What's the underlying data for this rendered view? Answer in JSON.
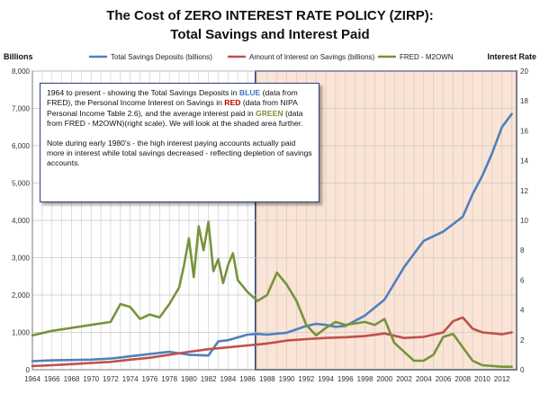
{
  "chart_data": {
    "type": "line",
    "title": "The Cost of ZERO INTEREST RATE POLICY (ZIRP):",
    "subtitle": "Total Savings and Interest Paid",
    "left_axis_title": "Billions",
    "right_axis_title": "Interest Rate",
    "left_ylim": [
      0,
      8000
    ],
    "left_ticks": [
      "0",
      "1,000",
      "2,000",
      "3,000",
      "4,000",
      "5,000",
      "6,000",
      "7,000",
      "8,000"
    ],
    "right_ylim": [
      0,
      20
    ],
    "right_ticks": [
      "0",
      "2",
      "4",
      "6",
      "8",
      "10",
      "12",
      "14",
      "16",
      "18",
      "20"
    ],
    "xlim": [
      1964,
      2013.5
    ],
    "x_tick_labels": [
      "1964",
      "1966",
      "1968",
      "1970",
      "1972",
      "1974",
      "1976",
      "1978",
      "1980",
      "1982",
      "1984",
      "1986",
      "1988",
      "1990",
      "1992",
      "1994",
      "1996",
      "1998",
      "2000",
      "2002",
      "2004",
      "2006",
      "2008",
      "2010",
      "2012"
    ],
    "grid": true,
    "legend_position": "top",
    "shaded_region": {
      "start": 1986.8,
      "end": 2013.5,
      "color": "#fbe4d5",
      "border": "#2b3f73"
    },
    "series": [
      {
        "name": "Total Savings Deposits (billions)",
        "axis": "left",
        "color": "#4f81bd",
        "x": [
          1964,
          1966,
          1968,
          1970,
          1972,
          1974,
          1976,
          1978,
          1980,
          1982,
          1983,
          1984,
          1986,
          1987,
          1988,
          1990,
          1992,
          1993,
          1994,
          1995,
          1996,
          1998,
          2000,
          2002,
          2004,
          2006,
          2007,
          2008,
          2009,
          2010,
          2011,
          2012,
          2013
        ],
        "values": [
          230,
          250,
          260,
          270,
          300,
          360,
          420,
          480,
          400,
          380,
          760,
          790,
          940,
          960,
          940,
          990,
          1170,
          1230,
          1200,
          1150,
          1170,
          1450,
          1880,
          2750,
          3450,
          3700,
          3900,
          4100,
          4700,
          5200,
          5800,
          6500,
          6850
        ]
      },
      {
        "name": "Amount of Interest on Savings (billions)",
        "axis": "left",
        "color": "#c0504d",
        "x": [
          1964,
          1966,
          1968,
          1970,
          1972,
          1974,
          1976,
          1978,
          1980,
          1982,
          1984,
          1986,
          1988,
          1990,
          1992,
          1994,
          1996,
          1998,
          2000,
          2002,
          2004,
          2006,
          2007,
          2008,
          2009,
          2010,
          2012,
          2013
        ],
        "values": [
          100,
          120,
          150,
          180,
          210,
          270,
          320,
          400,
          480,
          550,
          600,
          650,
          700,
          780,
          820,
          850,
          870,
          900,
          970,
          850,
          880,
          1000,
          1300,
          1400,
          1100,
          1000,
          950,
          1000
        ]
      },
      {
        "name": "FRED - M2OWN",
        "axis": "right",
        "color": "#77933c",
        "x": [
          1964,
          1966,
          1968,
          1970,
          1972,
          1973,
          1974,
          1975,
          1976,
          1977,
          1978,
          1979,
          1979.5,
          1980,
          1980.5,
          1981,
          1981.5,
          1982,
          1982.5,
          1983,
          1983.5,
          1984,
          1984.5,
          1985,
          1986,
          1987,
          1988,
          1989,
          1990,
          1991,
          1992,
          1993,
          1994,
          1995,
          1996,
          1998,
          1999,
          2000,
          2001,
          2002,
          2003,
          2004,
          2005,
          2006,
          2007,
          2008,
          2009,
          2010,
          2012,
          2013
        ],
        "values": [
          2.3,
          2.6,
          2.8,
          3.0,
          3.2,
          4.4,
          4.2,
          3.4,
          3.7,
          3.5,
          4.4,
          5.5,
          7.0,
          8.8,
          6.2,
          9.6,
          8.0,
          9.9,
          6.6,
          7.4,
          5.8,
          7.0,
          7.8,
          6.0,
          5.2,
          4.6,
          5.0,
          6.5,
          5.7,
          4.6,
          3.0,
          2.3,
          2.8,
          3.2,
          3.0,
          3.2,
          3.0,
          3.4,
          1.8,
          1.2,
          0.6,
          0.6,
          1.0,
          2.2,
          2.4,
          1.5,
          0.6,
          0.3,
          0.2,
          0.2
        ]
      }
    ]
  },
  "note": {
    "p1_a": "1964  to present - showing the Total Savings Deposits in ",
    "p1_blue": "BLUE",
    "p1_b": " (data from FRED), the Personal Income Interest on Savings in ",
    "p1_red": "RED",
    "p1_c": " (data from NIPA Personal Income Table 2.6), and the average interest paid in ",
    "p1_green": "GREEN",
    "p1_d": " (data from FRED - M2OWN)(right scale).  We will look at the shaded area further.",
    "p2": "Note during early 1980's  - the high interest paying accounts actually paid more in interest while total savings decreased - reflecting depletion of savings accounts."
  }
}
